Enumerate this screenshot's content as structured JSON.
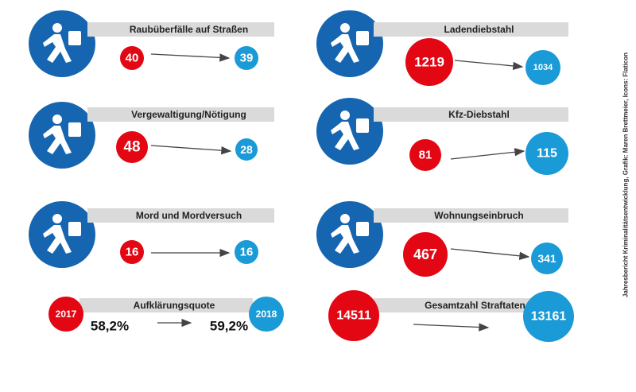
{
  "items": [
    {
      "label": "Raubüberfälle auf Straßen",
      "from": 40,
      "to": 39
    },
    {
      "label": "Vergewaltigung/Nötigung",
      "from": 48,
      "to": 28
    },
    {
      "label": "Mord und Mordversuch",
      "from": 16,
      "to": 16
    },
    {
      "label": "Ladendiebstahl",
      "from": 1219,
      "to": 1034
    },
    {
      "label": "Kfz-Diebstahl",
      "from": 81,
      "to": 115
    },
    {
      "label": "Wohnungseinbruch",
      "from": 467,
      "to": 341
    }
  ],
  "rate": {
    "label": "Aufklärungsquote",
    "year_from": 2017,
    "year_to": 2018,
    "from": "58,2%",
    "to": "59,2%"
  },
  "total": {
    "label": "Gesamtzahl Straftaten",
    "from": 14511,
    "to": 13161
  },
  "credit": "Jahresbericht Kriminalitätsentwicklung, Grafik: Maren Brettmeier, Icons: Flaticon"
}
